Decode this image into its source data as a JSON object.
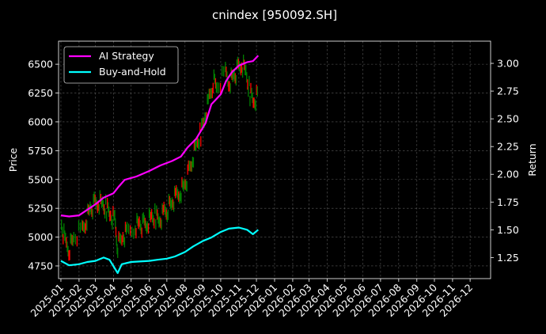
{
  "chart_data": {
    "type": "line",
    "title": "cnindex [950092.SH]",
    "xlabel": "",
    "ylabel": "Price",
    "ylabel_right": "Return",
    "x_ticks": [
      "2025-01",
      "2025-02",
      "2025-03",
      "2025-04",
      "2025-05",
      "2025-06",
      "2025-07",
      "2025-08",
      "2025-09",
      "2025-10",
      "2025-11",
      "2025-12",
      "2026-01",
      "2026-02",
      "2026-03",
      "2026-04",
      "2026-05",
      "2026-06",
      "2026-07",
      "2026-08",
      "2026-09",
      "2026-10",
      "2026-11",
      "2026-12"
    ],
    "xlim": [
      "2024-12-28",
      "2027-01-05"
    ],
    "ylim": [
      4640,
      6700
    ],
    "ylim_right": [
      1.06,
      3.2
    ],
    "y_ticks": [
      4750,
      5000,
      5250,
      5500,
      5750,
      6000,
      6250,
      6500
    ],
    "y_ticks_right": [
      1.25,
      1.5,
      1.75,
      2.0,
      2.25,
      2.5,
      2.75,
      3.0
    ],
    "y_tick_labels_right": [
      "1.25",
      "1.50",
      "1.75",
      "2.00",
      "2.25",
      "2.50",
      "2.75",
      "3.00"
    ],
    "grid": true,
    "legend_position": "top-left",
    "candles": {
      "name": "Price",
      "up_color": "#008000",
      "down_color": "#ff0000",
      "points": [
        [
          "2025-01-02",
          5120
        ],
        [
          "2025-01-09",
          4950
        ],
        [
          "2025-01-16",
          4900
        ],
        [
          "2025-01-23",
          5000
        ],
        [
          "2025-02-06",
          5050
        ],
        [
          "2025-02-13",
          5150
        ],
        [
          "2025-02-20",
          5250
        ],
        [
          "2025-02-27",
          5280
        ],
        [
          "2025-03-06",
          5300
        ],
        [
          "2025-03-13",
          5280
        ],
        [
          "2025-03-20",
          5250
        ],
        [
          "2025-03-27",
          5200
        ],
        [
          "2025-04-03",
          5150
        ],
        [
          "2025-04-08",
          4920
        ],
        [
          "2025-04-17",
          5000
        ],
        [
          "2025-04-24",
          5030
        ],
        [
          "2025-05-08",
          5100
        ],
        [
          "2025-05-15",
          5120
        ],
        [
          "2025-05-22",
          5100
        ],
        [
          "2025-05-29",
          5120
        ],
        [
          "2025-06-05",
          5170
        ],
        [
          "2025-06-12",
          5180
        ],
        [
          "2025-06-19",
          5150
        ],
        [
          "2025-06-26",
          5220
        ],
        [
          "2025-07-03",
          5250
        ],
        [
          "2025-07-10",
          5300
        ],
        [
          "2025-07-17",
          5350
        ],
        [
          "2025-07-24",
          5400
        ],
        [
          "2025-07-31",
          5450
        ],
        [
          "2025-08-07",
          5550
        ],
        [
          "2025-08-14",
          5680
        ],
        [
          "2025-08-21",
          5800
        ],
        [
          "2025-08-28",
          5900
        ],
        [
          "2025-09-04",
          6050
        ],
        [
          "2025-09-11",
          6200
        ],
        [
          "2025-09-18",
          6350
        ],
        [
          "2025-09-25",
          6300
        ],
        [
          "2025-10-09",
          6420
        ],
        [
          "2025-10-16",
          6350
        ],
        [
          "2025-10-23",
          6400
        ],
        [
          "2025-10-30",
          6450
        ],
        [
          "2025-11-06",
          6500
        ],
        [
          "2025-11-13",
          6420
        ],
        [
          "2025-11-20",
          6250
        ],
        [
          "2025-11-27",
          6180
        ],
        [
          "2025-12-04",
          6250
        ]
      ]
    },
    "series": [
      {
        "name": "AI Strategy",
        "axis": "right",
        "color": "#ff00ff",
        "points": [
          [
            "2025-01-01",
            1.63
          ],
          [
            "2025-01-15",
            1.62
          ],
          [
            "2025-02-01",
            1.63
          ],
          [
            "2025-02-15",
            1.68
          ],
          [
            "2025-03-01",
            1.73
          ],
          [
            "2025-03-15",
            1.79
          ],
          [
            "2025-04-01",
            1.83
          ],
          [
            "2025-04-10",
            1.89
          ],
          [
            "2025-04-20",
            1.95
          ],
          [
            "2025-05-10",
            1.98
          ],
          [
            "2025-06-01",
            2.03
          ],
          [
            "2025-06-20",
            2.08
          ],
          [
            "2025-07-10",
            2.12
          ],
          [
            "2025-07-25",
            2.16
          ],
          [
            "2025-08-05",
            2.24
          ],
          [
            "2025-08-20",
            2.32
          ],
          [
            "2025-09-05",
            2.46
          ],
          [
            "2025-09-15",
            2.63
          ],
          [
            "2025-10-01",
            2.72
          ],
          [
            "2025-10-10",
            2.84
          ],
          [
            "2025-10-20",
            2.92
          ],
          [
            "2025-11-01",
            2.98
          ],
          [
            "2025-11-15",
            3.01
          ],
          [
            "2025-11-25",
            3.02
          ],
          [
            "2025-12-04",
            3.07
          ]
        ]
      },
      {
        "name": "Buy-and-Hold",
        "axis": "right",
        "color": "#00ffff",
        "points": [
          [
            "2025-01-01",
            1.22
          ],
          [
            "2025-01-15",
            1.18
          ],
          [
            "2025-02-01",
            1.19
          ],
          [
            "2025-02-15",
            1.21
          ],
          [
            "2025-03-01",
            1.22
          ],
          [
            "2025-03-15",
            1.25
          ],
          [
            "2025-03-25",
            1.23
          ],
          [
            "2025-04-08",
            1.11
          ],
          [
            "2025-04-15",
            1.19
          ],
          [
            "2025-05-01",
            1.21
          ],
          [
            "2025-06-01",
            1.22
          ],
          [
            "2025-06-15",
            1.23
          ],
          [
            "2025-07-01",
            1.24
          ],
          [
            "2025-07-15",
            1.26
          ],
          [
            "2025-08-01",
            1.3
          ],
          [
            "2025-08-15",
            1.35
          ],
          [
            "2025-09-01",
            1.4
          ],
          [
            "2025-09-15",
            1.43
          ],
          [
            "2025-10-01",
            1.48
          ],
          [
            "2025-10-15",
            1.51
          ],
          [
            "2025-11-01",
            1.52
          ],
          [
            "2025-11-15",
            1.5
          ],
          [
            "2025-11-25",
            1.46
          ],
          [
            "2025-12-04",
            1.5
          ]
        ]
      }
    ]
  }
}
